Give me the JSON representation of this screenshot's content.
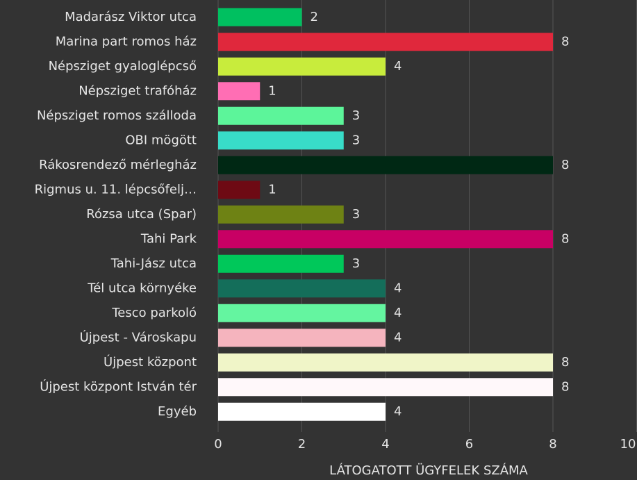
{
  "chart_data": {
    "type": "barh",
    "categories": [
      "Madarász Viktor utca",
      "Marina part romos ház",
      "Népsziget gyaloglépcső",
      "Népsziget trafóház",
      "Népsziget romos szálloda",
      "OBI mögött",
      "Rákosrendező mérlegház",
      "Rigmus u. 11. lépcsőfelj…",
      "Rózsa utca (Spar)",
      "Tahi Park",
      "Tahi-Jász utca",
      "Tél utca környéke",
      "Tesco parkoló",
      "Újpest - Városkapu",
      "Újpest központ",
      "Újpest központ István tér",
      "Egyéb"
    ],
    "values": [
      2,
      8,
      4,
      1,
      3,
      3,
      8,
      1,
      3,
      8,
      3,
      4,
      4,
      4,
      8,
      8,
      4
    ],
    "colors": [
      "#00c060",
      "#e0283c",
      "#c8ec3c",
      "#ff6eb4",
      "#5cf59a",
      "#38dcc8",
      "#002814",
      "#6e0a14",
      "#6e8214",
      "#c80064",
      "#00c85a",
      "#146e5a",
      "#64f5a0",
      "#f5b4be",
      "#f0f5c8",
      "#fff8fa",
      "#ffffff"
    ],
    "xlabel": "LÁTOGATOTT ÜGYFELEK SZÁMA",
    "xlim": [
      0,
      10
    ],
    "xticks": [
      0,
      2,
      4,
      6,
      8,
      10
    ],
    "grid": true
  }
}
